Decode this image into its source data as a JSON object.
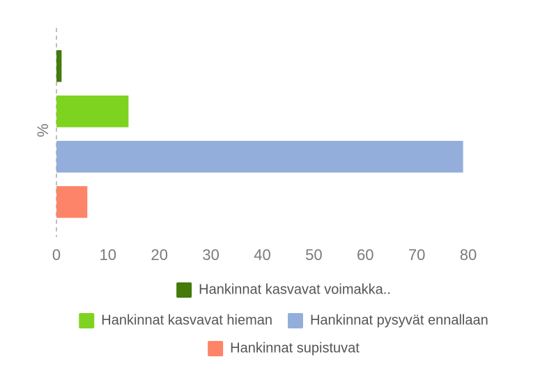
{
  "chart_data": {
    "type": "hbar",
    "y_label": "%",
    "categories": [
      null
    ],
    "series": [
      {
        "name": "Hankinnat kasvavat voimakka..",
        "color": "#447a0c",
        "values": [
          1
        ]
      },
      {
        "name": "Hankinnat kasvavat hieman",
        "color": "#7ed321",
        "values": [
          14
        ]
      },
      {
        "name": "Hankinnat pysyvät ennallaan",
        "color": "#94aedb",
        "values": [
          79
        ]
      },
      {
        "name": "Hankinnat supistuvat",
        "color": "#fd8468",
        "values": [
          6
        ]
      }
    ],
    "xlim": [
      0,
      80
    ],
    "xticks": [
      0,
      10,
      20,
      30,
      40,
      50,
      60,
      70,
      80
    ],
    "grid": false
  }
}
